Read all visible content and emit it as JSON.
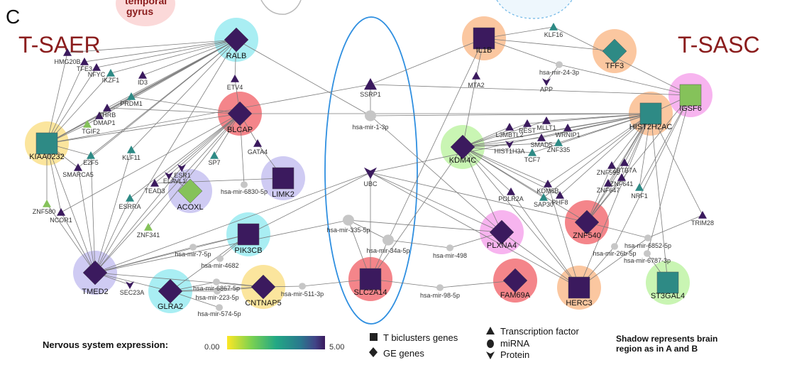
{
  "panel_letter": "C",
  "partial_caption": [
    "temporal",
    "gyrus"
  ],
  "groups": {
    "left": "T-SAER",
    "right": "T-SASC"
  },
  "colors": {
    "cyan": "#a9eef3",
    "red": "#f4858a",
    "lavender": "#cfcbf3",
    "yellow": "#fbe59d",
    "orange": "#fbc7a0",
    "pink": "#f7b4ef",
    "green": "#c9f5b3",
    "dark": "#3b1a5e",
    "teal": "#2e8a85",
    "lime": "#85c25a",
    "mir": "#c6c6c6",
    "edge": "#7c7c7c",
    "ellipse": "#2f8fe0"
  },
  "nodes": [
    {
      "id": "RALB",
      "shape": "diamond",
      "fill": "dark",
      "halo": "cyan",
      "big": true
    },
    {
      "id": "BLCAP",
      "shape": "diamond",
      "fill": "dark",
      "halo": "red",
      "big": true
    },
    {
      "id": "KIAA0232",
      "shape": "square",
      "fill": "teal",
      "halo": "yellow",
      "big": true
    },
    {
      "id": "ACOXL",
      "shape": "diamond",
      "fill": "lime",
      "halo": "lavender",
      "big": true
    },
    {
      "id": "LIMK2",
      "shape": "square",
      "fill": "dark",
      "halo": "lavender",
      "big": true
    },
    {
      "id": "PIK3CB",
      "shape": "square",
      "fill": "dark",
      "halo": "cyan",
      "big": true
    },
    {
      "id": "TMED2",
      "shape": "diamond",
      "fill": "dark",
      "halo": "lavender",
      "big": true
    },
    {
      "id": "GLRA2",
      "shape": "diamond",
      "fill": "dark",
      "halo": "cyan",
      "big": true
    },
    {
      "id": "CNTNAP5",
      "shape": "diamond",
      "fill": "dark",
      "halo": "yellow",
      "big": true
    },
    {
      "id": "SLC2A14",
      "shape": "square",
      "fill": "dark",
      "halo": "red",
      "big": true
    },
    {
      "id": "IL1B",
      "shape": "square",
      "fill": "dark",
      "halo": "orange",
      "big": true
    },
    {
      "id": "TFF3",
      "shape": "diamond",
      "fill": "teal",
      "halo": "orange",
      "big": true
    },
    {
      "id": "IGSF6",
      "shape": "square",
      "fill": "lime",
      "halo": "pink",
      "big": true
    },
    {
      "id": "HIST2H2AC",
      "shape": "square",
      "fill": "teal",
      "halo": "orange",
      "big": true
    },
    {
      "id": "KDM4C",
      "shape": "diamond",
      "fill": "dark",
      "halo": "green",
      "big": true
    },
    {
      "id": "ZNF540",
      "shape": "diamond",
      "fill": "dark",
      "halo": "red",
      "big": true
    },
    {
      "id": "PLXNA4",
      "shape": "diamond",
      "fill": "dark",
      "halo": "pink",
      "big": true
    },
    {
      "id": "FAM69A",
      "shape": "diamond",
      "fill": "dark",
      "halo": "red",
      "big": true
    },
    {
      "id": "HERC3",
      "shape": "square",
      "fill": "dark",
      "halo": "orange",
      "big": true
    },
    {
      "id": "ST3GAL4",
      "shape": "square",
      "fill": "teal",
      "halo": "green",
      "big": true
    },
    {
      "id": "HMG20B",
      "shape": "tri",
      "fill": "dark"
    },
    {
      "id": "TFE3",
      "shape": "tri",
      "fill": "dark"
    },
    {
      "id": "NFYC",
      "shape": "tri",
      "fill": "dark"
    },
    {
      "id": "IKZF1",
      "shape": "tri",
      "fill": "teal"
    },
    {
      "id": "ID3",
      "shape": "tri",
      "fill": "dark"
    },
    {
      "id": "ETV4",
      "shape": "tri",
      "fill": "dark"
    },
    {
      "id": "PRDM1",
      "shape": "tri",
      "fill": "teal"
    },
    {
      "id": "THRB",
      "shape": "tri",
      "fill": "dark"
    },
    {
      "id": "DMAP1",
      "shape": "tri",
      "fill": "dark"
    },
    {
      "id": "TGIF2",
      "shape": "tri",
      "fill": "lime"
    },
    {
      "id": "E2F5",
      "shape": "tri",
      "fill": "teal"
    },
    {
      "id": "SMARCA5",
      "shape": "tri",
      "fill": "dark"
    },
    {
      "id": "KLF11",
      "shape": "tri",
      "fill": "teal"
    },
    {
      "id": "SP7",
      "shape": "tri",
      "fill": "teal"
    },
    {
      "id": "GATA4",
      "shape": "tri",
      "fill": "dark"
    },
    {
      "id": "ESR1",
      "shape": "protein",
      "fill": "dark"
    },
    {
      "id": "ELAVL1",
      "shape": "protein",
      "fill": "dark"
    },
    {
      "id": "TEAD3",
      "shape": "tri",
      "fill": "dark"
    },
    {
      "id": "ESRRA",
      "shape": "tri",
      "fill": "teal"
    },
    {
      "id": "ZNF580",
      "shape": "tri",
      "fill": "lime"
    },
    {
      "id": "NCOR1",
      "shape": "tri",
      "fill": "dark"
    },
    {
      "id": "ZNF341",
      "shape": "tri",
      "fill": "lime"
    },
    {
      "id": "SEC23A",
      "shape": "protein",
      "fill": "dark"
    },
    {
      "id": "SSRP1",
      "shape": "tri",
      "fill": "dark",
      "size": "m"
    },
    {
      "id": "UBC",
      "shape": "protein",
      "fill": "dark",
      "size": "m"
    },
    {
      "id": "KLF16",
      "shape": "tri",
      "fill": "teal"
    },
    {
      "id": "MTA2",
      "shape": "tri",
      "fill": "dark"
    },
    {
      "id": "APP",
      "shape": "protein",
      "fill": "dark"
    },
    {
      "id": "L3MBTL2",
      "shape": "tri",
      "fill": "dark"
    },
    {
      "id": "REST",
      "shape": "tri",
      "fill": "dark"
    },
    {
      "id": "MLLT1",
      "shape": "tri",
      "fill": "dark"
    },
    {
      "id": "WRNIP1",
      "shape": "tri",
      "fill": "dark"
    },
    {
      "id": "HIST1H3A",
      "shape": "protein",
      "fill": "dark"
    },
    {
      "id": "SMAD5",
      "shape": "tri",
      "fill": "dark"
    },
    {
      "id": "ZNF335",
      "shape": "tri",
      "fill": "teal"
    },
    {
      "id": "TCF7",
      "shape": "tri",
      "fill": "teal"
    },
    {
      "id": "ZNF595",
      "shape": "tri",
      "fill": "dark"
    },
    {
      "id": "ZBTB7A",
      "shape": "tri",
      "fill": "dark"
    },
    {
      "id": "ZNF641",
      "shape": "tri",
      "fill": "dark"
    },
    {
      "id": "ZNF647",
      "shape": "tri",
      "fill": "dark"
    },
    {
      "id": "KDM5B",
      "shape": "tri",
      "fill": "dark"
    },
    {
      "id": "POLR2A",
      "shape": "tri",
      "fill": "dark"
    },
    {
      "id": "SAP30",
      "shape": "tri",
      "fill": "teal"
    },
    {
      "id": "PHF8",
      "shape": "tri",
      "fill": "dark"
    },
    {
      "id": "NRF1",
      "shape": "tri",
      "fill": "teal"
    },
    {
      "id": "TRIM28",
      "shape": "tri",
      "fill": "dark"
    },
    {
      "id": "hsa-mir-1-3p",
      "shape": "mir",
      "size": "m"
    },
    {
      "id": "hsa-mir-6830-5p",
      "shape": "mir"
    },
    {
      "id": "hsa-mir-335-5p",
      "shape": "mir",
      "size": "m"
    },
    {
      "id": "hsa-mir-34a-5p",
      "shape": "mir",
      "size": "m"
    },
    {
      "id": "hsa-mir-7-5p",
      "shape": "mir"
    },
    {
      "id": "hsa-mir-4682",
      "shape": "mir"
    },
    {
      "id": "hsa-mir-6867-5p",
      "shape": "mir"
    },
    {
      "id": "hsa-mir-223-5p",
      "shape": "mir"
    },
    {
      "id": "hsa-mir-574-5p",
      "shape": "mir"
    },
    {
      "id": "hsa-mir-511-3p",
      "shape": "mir"
    },
    {
      "id": "hsa-mir-498",
      "shape": "mir"
    },
    {
      "id": "hsa-mir-98-5p",
      "shape": "mir"
    },
    {
      "id": "hsa-mir-24-3p",
      "shape": "mir"
    },
    {
      "id": "hsa-mir-6852-5p",
      "shape": "mir"
    },
    {
      "id": "hsa-mir-26b-5p",
      "shape": "mir"
    },
    {
      "id": "hsa-mir-6787-3p",
      "shape": "mir"
    }
  ],
  "edges": [
    [
      "RALB",
      "HMG20B"
    ],
    [
      "RALB",
      "TFE3"
    ],
    [
      "RALB",
      "NFYC"
    ],
    [
      "RALB",
      "IKZF1"
    ],
    [
      "RALB",
      "ID3"
    ],
    [
      "RALB",
      "ETV4"
    ],
    [
      "RALB",
      "PRDM1"
    ],
    [
      "RALB",
      "THRB"
    ],
    [
      "RALB",
      "DMAP1"
    ],
    [
      "RALB",
      "TGIF2"
    ],
    [
      "RALB",
      "KIAA0232"
    ],
    [
      "RALB",
      "E2F5"
    ],
    [
      "RALB",
      "TMED2"
    ],
    [
      "RALB",
      "KLF11"
    ],
    [
      "RALB",
      "SMARCA5"
    ],
    [
      "RALB",
      "hsa-mir-1-3p"
    ],
    [
      "BLCAP",
      "ETV4"
    ],
    [
      "BLCAP",
      "KIAA0232"
    ],
    [
      "BLCAP",
      "PRDM1"
    ],
    [
      "BLCAP",
      "THRB"
    ],
    [
      "BLCAP",
      "TMED2"
    ],
    [
      "BLCAP",
      "hsa-mir-6830-5p"
    ],
    [
      "BLCAP",
      "GATA4"
    ],
    [
      "BLCAP",
      "SP7"
    ],
    [
      "BLCAP",
      "ESR1"
    ],
    [
      "BLCAP",
      "ELAVL1"
    ],
    [
      "BLCAP",
      "TEAD3"
    ],
    [
      "BLCAP",
      "ESRRA"
    ],
    [
      "BLCAP",
      "HIST2H2AC"
    ],
    [
      "BLCAP",
      "NCOR1"
    ],
    [
      "BLCAP",
      "ZNF341"
    ],
    [
      "KIAA0232",
      "HMG20B"
    ],
    [
      "KIAA0232",
      "TFE3"
    ],
    [
      "KIAA0232",
      "NFYC"
    ],
    [
      "KIAA0232",
      "IKZF1"
    ],
    [
      "KIAA0232",
      "PRDM1"
    ],
    [
      "KIAA0232",
      "DMAP1"
    ],
    [
      "KIAA0232",
      "TGIF2"
    ],
    [
      "KIAA0232",
      "E2F5"
    ],
    [
      "KIAA0232",
      "SMARCA5"
    ],
    [
      "KIAA0232",
      "ZNF580"
    ],
    [
      "KIAA0232",
      "NCOR1"
    ],
    [
      "KIAA0232",
      "TMED2"
    ],
    [
      "TMED2",
      "E2F5"
    ],
    [
      "TMED2",
      "KLF11"
    ],
    [
      "TMED2",
      "SMARCA5"
    ],
    [
      "TMED2",
      "ZNF580"
    ],
    [
      "TMED2",
      "NCOR1"
    ],
    [
      "TMED2",
      "ESR1"
    ],
    [
      "TMED2",
      "ESRRA"
    ],
    [
      "TMED2",
      "SEC23A"
    ],
    [
      "TMED2",
      "PIK3CB"
    ],
    [
      "TMED2",
      "GLRA2"
    ],
    [
      "TMED2",
      "hsa-mir-7-5p"
    ],
    [
      "TMED2",
      "hsa-mir-335-5p"
    ],
    [
      "TMED2",
      "CNTNAP5"
    ],
    [
      "TMED2",
      "UBC"
    ],
    [
      "ACOXL",
      "ESR1"
    ],
    [
      "ACOXL",
      "ELAVL1"
    ],
    [
      "LIMK2",
      "GATA4"
    ],
    [
      "LIMK2",
      "TEAD3"
    ],
    [
      "PIK3CB",
      "hsa-mir-4682"
    ],
    [
      "PIK3CB",
      "hsa-mir-7-5p"
    ],
    [
      "PIK3CB",
      "GLRA2"
    ],
    [
      "PIK3CB",
      "UBC"
    ],
    [
      "GLRA2",
      "hsa-mir-6867-5p"
    ],
    [
      "GLRA2",
      "hsa-mir-223-5p"
    ],
    [
      "GLRA2",
      "hsa-mir-574-5p"
    ],
    [
      "GLRA2",
      "CNTNAP5"
    ],
    [
      "CNTNAP5",
      "hsa-mir-511-3p"
    ],
    [
      "CNTNAP5",
      "hsa-mir-6867-5p"
    ],
    [
      "CNTNAP5",
      "hsa-mir-223-5p"
    ],
    [
      "hsa-mir-511-3p",
      "SLC2A14"
    ],
    [
      "SLC2A14",
      "hsa-mir-34a-5p"
    ],
    [
      "SLC2A14",
      "hsa-mir-98-5p"
    ],
    [
      "SLC2A14",
      "UBC"
    ],
    [
      "SLC2A14",
      "hsa-mir-335-5p"
    ],
    [
      "SLC2A14",
      "KDM4C"
    ],
    [
      "hsa-mir-98-5p",
      "FAM69A"
    ],
    [
      "SSRP1",
      "hsa-mir-1-3p"
    ],
    [
      "SSRP1",
      "IL1B"
    ],
    [
      "SSRP1",
      "IGSF6"
    ],
    [
      "SSRP1",
      "KIAA0232"
    ],
    [
      "hsa-mir-1-3p",
      "PLXNA4"
    ],
    [
      "hsa-mir-1-3p",
      "HIST2H2AC"
    ],
    [
      "UBC",
      "PLXNA4"
    ],
    [
      "UBC",
      "HERC3"
    ],
    [
      "UBC",
      "HIST2H2AC"
    ],
    [
      "UBC",
      "ZNF540"
    ],
    [
      "IL1B",
      "KLF16"
    ],
    [
      "IL1B",
      "MTA2"
    ],
    [
      "IL1B",
      "hsa-mir-24-3p"
    ],
    [
      "IL1B",
      "TFF3"
    ],
    [
      "IL1B",
      "hsa-mir-34a-5p"
    ],
    [
      "KLF16",
      "IGSF6"
    ],
    [
      "hsa-mir-24-3p",
      "IGSF6"
    ],
    [
      "hsa-mir-24-3p",
      "APP"
    ],
    [
      "MTA2",
      "KDM4C"
    ],
    [
      "HIST2H2AC",
      "KDM4C"
    ],
    [
      "HIST2H2AC",
      "REST"
    ],
    [
      "HIST2H2AC",
      "MLLT1"
    ],
    [
      "HIST2H2AC",
      "WRNIP1"
    ],
    [
      "HIST2H2AC",
      "SMAD5"
    ],
    [
      "HIST2H2AC",
      "ZNF335"
    ],
    [
      "HIST2H2AC",
      "TCF7"
    ],
    [
      "HIST2H2AC",
      "ZNF595"
    ],
    [
      "HIST2H2AC",
      "ZBTB7A"
    ],
    [
      "HIST2H2AC",
      "ZNF641"
    ],
    [
      "HIST2H2AC",
      "ZNF647"
    ],
    [
      "HIST2H2AC",
      "KDM5B"
    ],
    [
      "HIST2H2AC",
      "SAP30"
    ],
    [
      "HIST2H2AC",
      "PHF8"
    ],
    [
      "HIST2H2AC",
      "NRF1"
    ],
    [
      "HIST2H2AC",
      "ZNF540"
    ],
    [
      "HIST2H2AC",
      "IGSF6"
    ],
    [
      "HIST2H2AC",
      "HERC3"
    ],
    [
      "HIST2H2AC",
      "TRIM28"
    ],
    [
      "KDM4C",
      "L3MBTL2"
    ],
    [
      "KDM4C",
      "REST"
    ],
    [
      "KDM4C",
      "MLLT1"
    ],
    [
      "KDM4C",
      "WRNIP1"
    ],
    [
      "KDM4C",
      "HIST1H3A"
    ],
    [
      "KDM4C",
      "SMAD5"
    ],
    [
      "KDM4C",
      "ZNF335"
    ],
    [
      "KDM4C",
      "TCF7"
    ],
    [
      "KDM4C",
      "KDM5B"
    ],
    [
      "KDM4C",
      "POLR2A"
    ],
    [
      "KDM4C",
      "SAP30"
    ],
    [
      "KDM4C",
      "PHF8"
    ],
    [
      "KDM4C",
      "ZNF540"
    ],
    [
      "KDM4C",
      "HERC3"
    ],
    [
      "KDM4C",
      "PLXNA4"
    ],
    [
      "ZNF540",
      "ZNF595"
    ],
    [
      "ZNF540",
      "ZBTB7A"
    ],
    [
      "ZNF540",
      "ZNF641"
    ],
    [
      "ZNF540",
      "hsa-mir-6852-5p"
    ],
    [
      "PLXNA4",
      "hsa-mir-498"
    ],
    [
      "PLXNA4",
      "HERC3"
    ],
    [
      "hsa-mir-498",
      "hsa-mir-34a-5p"
    ],
    [
      "HERC3",
      "hsa-mir-26b-5p"
    ],
    [
      "HERC3",
      "hsa-mir-6852-5p"
    ],
    [
      "HERC3",
      "KDM5B"
    ],
    [
      "HERC3",
      "POLR2A"
    ],
    [
      "IGSF6",
      "hsa-mir-26b-5p"
    ],
    [
      "IGSF6",
      "hsa-mir-6787-3p"
    ],
    [
      "IGSF6",
      "ZNF540"
    ],
    [
      "IGSF6",
      "NRF1"
    ],
    [
      "TRIM28",
      "hsa-mir-6852-5p"
    ],
    [
      "HIST2H2AC",
      "ST3GAL4"
    ],
    [
      "hsa-mir-6787-3p",
      "ST3GAL4"
    ],
    [
      "hsa-mir-335-5p",
      "hsa-mir-34a-5p"
    ],
    [
      "PLXNA4",
      "hsa-mir-335-5p"
    ]
  ],
  "legend": {
    "title": "Nervous system expression:",
    "min": "0.00",
    "max": "5.00",
    "shapes": [
      "T biclusters genes",
      "GE genes"
    ],
    "types": [
      "Transcription factor",
      "miRNA",
      "Protein"
    ],
    "note": [
      "Shadow represents brain",
      "region as in A and B"
    ]
  }
}
